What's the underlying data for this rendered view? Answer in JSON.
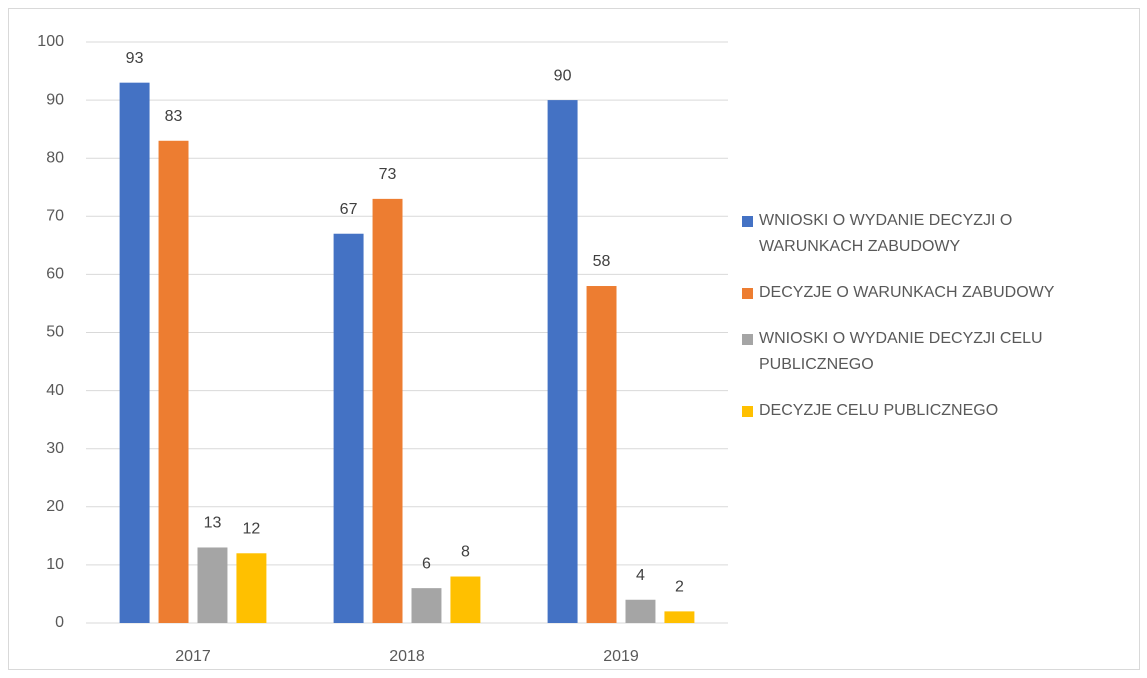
{
  "chart_data": {
    "type": "bar",
    "categories": [
      "2017",
      "2018",
      "2019"
    ],
    "series": [
      {
        "name": "WNIOSKI O WYDANIE DECYZJI O WARUNKACH ZABUDOWY",
        "color": "#4472c4",
        "values": [
          93,
          67,
          90
        ]
      },
      {
        "name": "DECYZJE O WARUNKACH ZABUDOWY",
        "color": "#ed7d31",
        "values": [
          83,
          73,
          58
        ]
      },
      {
        "name": "WNIOSKI O WYDANIE DECYZJI CELU PUBLICZNEGO",
        "color": "#a5a5a5",
        "values": [
          13,
          6,
          4
        ]
      },
      {
        "name": "DECYZJE CELU PUBLICZNEGO",
        "color": "#ffc000",
        "values": [
          12,
          8,
          2
        ]
      }
    ],
    "ylim": [
      0,
      100
    ],
    "yticks": [
      0,
      10,
      20,
      30,
      40,
      50,
      60,
      70,
      80,
      90,
      100
    ],
    "grid": true,
    "legend": "right"
  }
}
